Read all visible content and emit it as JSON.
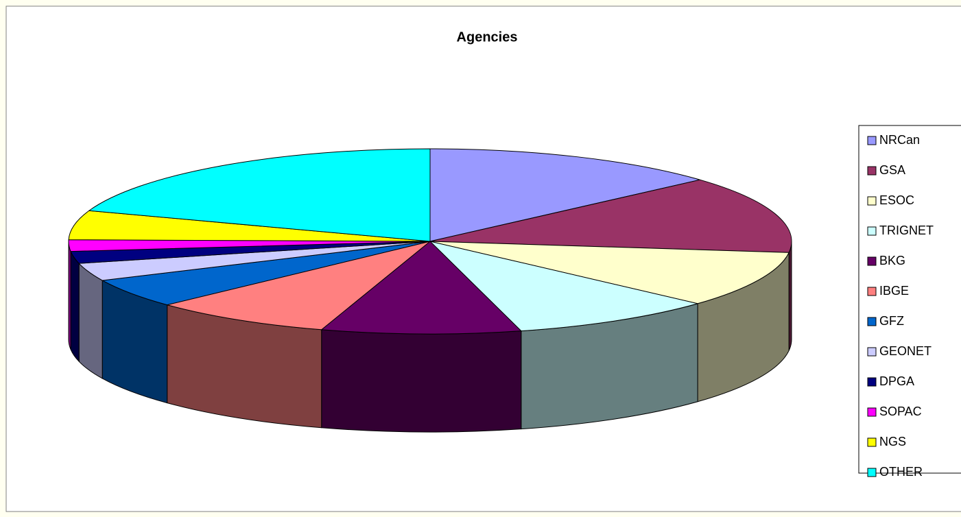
{
  "chart_data": {
    "type": "pie",
    "title": "Agencies",
    "three_d": true,
    "categories": [
      "NRCan",
      "GSA",
      "ESOC",
      "TRIGNET",
      "BKG",
      "IBGE",
      "GFZ",
      "GEONET",
      "DPGA",
      "SOPAC",
      "NGS",
      "OTHER"
    ],
    "values": [
      13.4,
      13.5,
      9.8,
      9.2,
      8.9,
      8.1,
      5.1,
      3.1,
      2.1,
      2.0,
      5.1,
      19.6
    ],
    "colors": [
      "#9999ff",
      "#993366",
      "#ffffcc",
      "#ccffff",
      "#660066",
      "#ff8080",
      "#0066cc",
      "#ccccff",
      "#000080",
      "#ff00ff",
      "#ffff00",
      "#00ffff"
    ],
    "legend": "right"
  }
}
